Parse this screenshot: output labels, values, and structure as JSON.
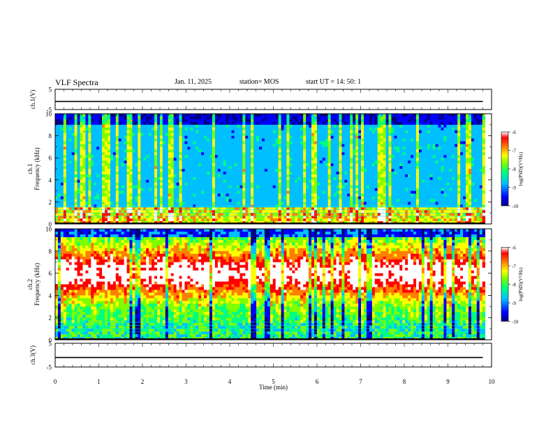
{
  "header": {
    "title": "VLF Spectra",
    "date": "Jan. 11, 2025",
    "station": "station= MOS",
    "start": "start  UT =   14: 50: 1"
  },
  "chart_data": [
    {
      "type": "line",
      "ylabel": "ch.1(V)",
      "ylim": [
        -5,
        5
      ],
      "yticks": [
        "5",
        "-5"
      ],
      "x": [
        0,
        9.8
      ],
      "values": [
        -1,
        -1
      ],
      "grid": false
    },
    {
      "type": "heatmap",
      "ylabel": "ch.1",
      "ylabel2": "Frequency (kHz)",
      "ylim": [
        0,
        10
      ],
      "yticks": [
        "0",
        "2",
        "4",
        "6",
        "8",
        "10"
      ],
      "xlim": [
        0,
        10
      ],
      "colorbar": {
        "label": "log(PSD)(V²/Hz)",
        "range": [
          -10,
          -6
        ],
        "ticks": [
          "-6",
          "-7",
          "-8",
          "-9",
          "-10"
        ]
      },
      "colors": [
        "#00007f",
        "#0000ff",
        "#00bfff",
        "#00ff7f",
        "#7fff00",
        "#ffff00",
        "#ff7f00",
        "#ff0000",
        "#ffffff"
      ]
    },
    {
      "type": "heatmap",
      "ylabel": "ch.2",
      "ylabel2": "Frequency (kHz)",
      "ylim": [
        0,
        10
      ],
      "yticks": [
        "0",
        "2",
        "4",
        "6",
        "8",
        "10"
      ],
      "xlim": [
        0,
        10
      ],
      "colorbar": {
        "label": "log(PSD)(V²/Hz)",
        "range": [
          -10,
          -6
        ],
        "ticks": [
          "-6",
          "-7",
          "-8",
          "-9",
          "-10"
        ]
      }
    },
    {
      "type": "line",
      "ylabel": "ch.3(V)",
      "ylim": [
        -5,
        5
      ],
      "yticks": [
        "5",
        "-5"
      ],
      "x": [
        0,
        9.8
      ],
      "values": [
        -1,
        -1
      ],
      "xlabel": "Time (min)",
      "xticks": [
        "0",
        "1",
        "2",
        "3",
        "4",
        "5",
        "6",
        "7",
        "8",
        "9",
        "10"
      ]
    }
  ]
}
